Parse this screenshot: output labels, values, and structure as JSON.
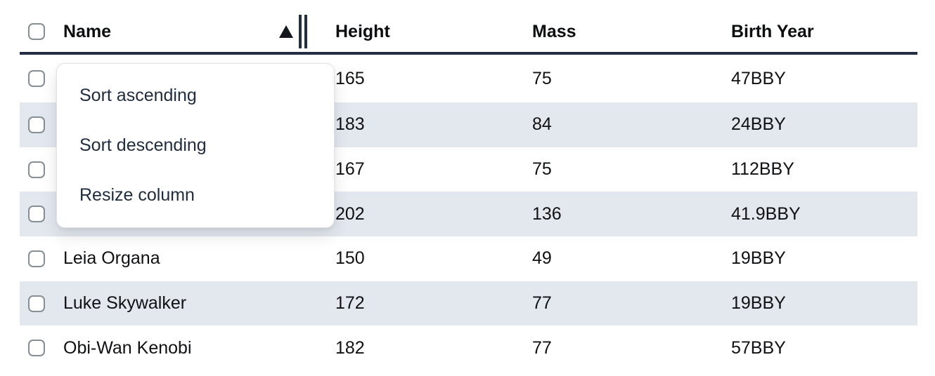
{
  "table": {
    "columns": [
      {
        "key": "name",
        "label": "Name",
        "sorted": "ascending"
      },
      {
        "key": "height",
        "label": "Height"
      },
      {
        "key": "mass",
        "label": "Mass"
      },
      {
        "key": "birth_year",
        "label": "Birth Year"
      }
    ],
    "rows": [
      {
        "name": "",
        "height": "165",
        "mass": "75",
        "birth_year": "47BBY"
      },
      {
        "name": "",
        "height": "183",
        "mass": "84",
        "birth_year": "24BBY"
      },
      {
        "name": "",
        "height": "167",
        "mass": "75",
        "birth_year": "112BBY"
      },
      {
        "name": "",
        "height": "202",
        "mass": "136",
        "birth_year": "41.9BBY"
      },
      {
        "name": "Leia Organa",
        "height": "150",
        "mass": "49",
        "birth_year": "19BBY"
      },
      {
        "name": "Luke Skywalker",
        "height": "172",
        "mass": "77",
        "birth_year": "19BBY"
      },
      {
        "name": "Obi-Wan Kenobi",
        "height": "182",
        "mass": "77",
        "birth_year": "57BBY"
      }
    ]
  },
  "menu": {
    "items": [
      "Sort ascending",
      "Sort descending",
      "Resize column"
    ]
  },
  "icons": {
    "sort_indicator": "triangle-up",
    "resize_handle": "double-vertical-bars"
  },
  "colors": {
    "header_border": "#232e42",
    "row_stripe": "#e3e8ef",
    "menu_text": "#1f2b3e",
    "checkbox_border": "#868e96"
  }
}
